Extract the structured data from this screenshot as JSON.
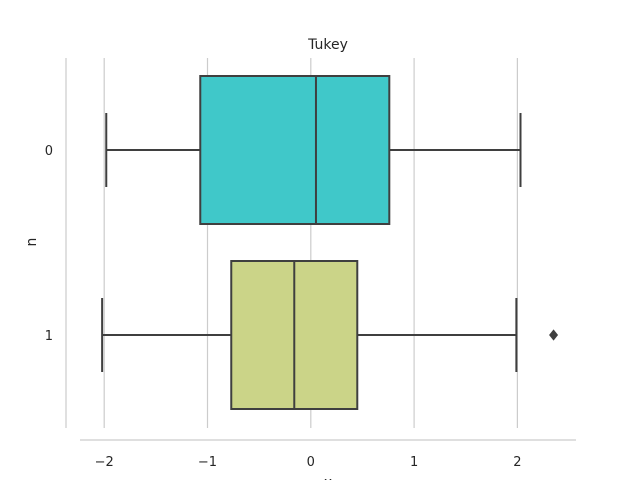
{
  "chart_data": {
    "type": "boxplot",
    "orientation": "horizontal",
    "title": "Tukey",
    "xlabel": "x",
    "ylabel": "n",
    "xlim": [
      -2.4,
      2.6
    ],
    "x_ticks": [
      -2,
      -1,
      0,
      1,
      2
    ],
    "x_tick_labels": [
      "−2",
      "−1",
      "0",
      "1",
      "2"
    ],
    "grid": "vertical",
    "categories": [
      "0",
      "1"
    ],
    "boxes": [
      {
        "category": "0",
        "whisker_low": -1.98,
        "q1": -1.07,
        "median": 0.05,
        "q3": 0.76,
        "whisker_high": 2.03,
        "outliers": [],
        "color": "#40C8C9"
      },
      {
        "category": "1",
        "whisker_low": -2.02,
        "q1": -0.77,
        "median": -0.16,
        "q3": 0.45,
        "whisker_high": 1.99,
        "outliers": [
          2.35
        ],
        "color": "#CBD488"
      }
    ],
    "line_color": "#3F3F3F",
    "grid_color": "#CCCCCC"
  }
}
